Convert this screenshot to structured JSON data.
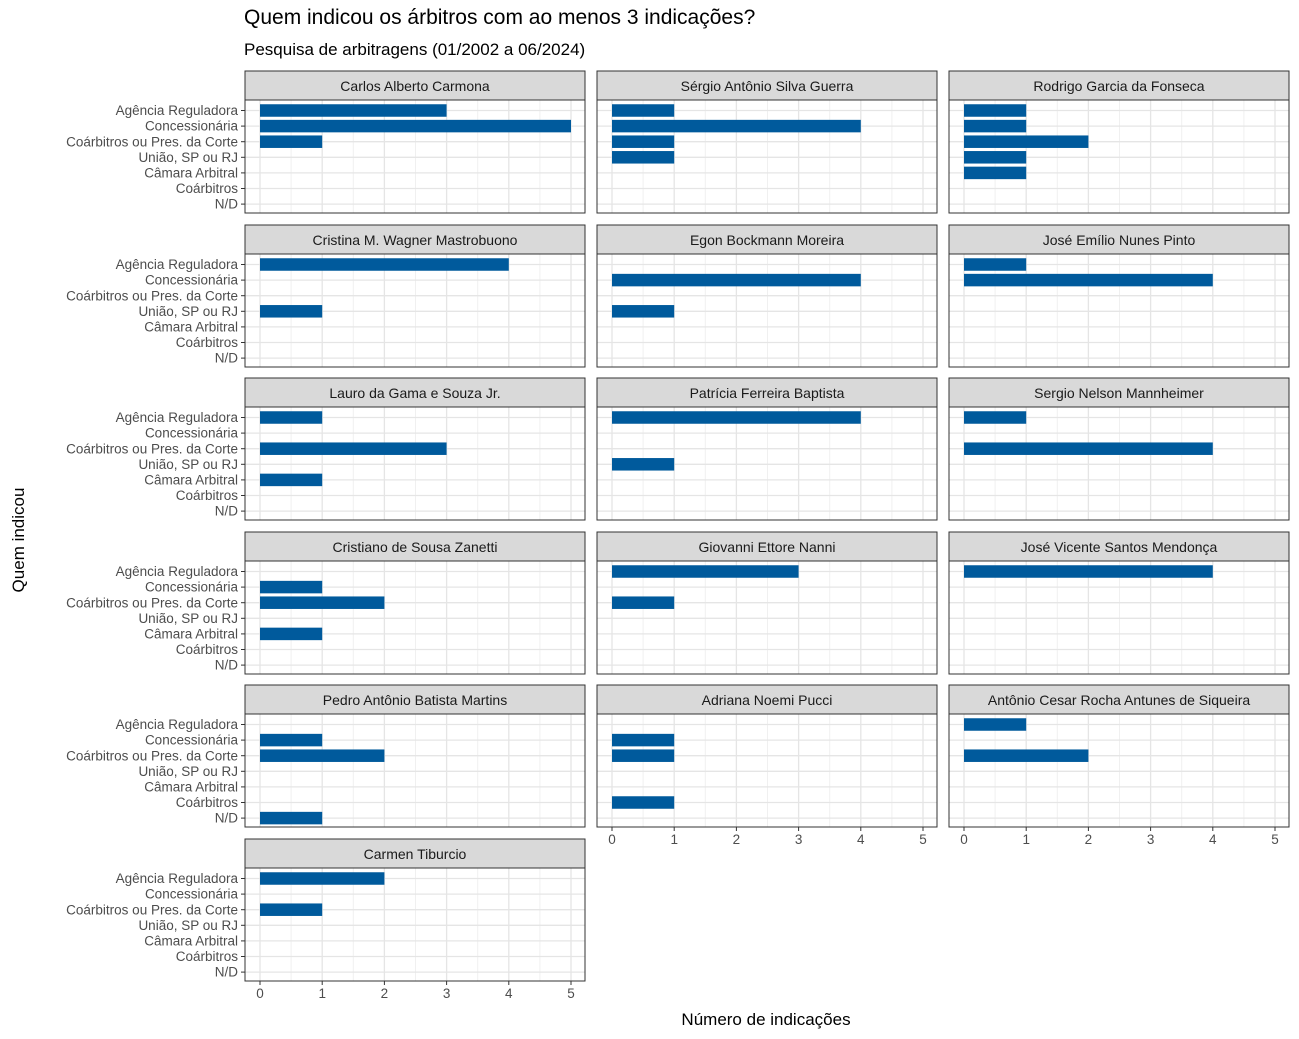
{
  "chart_data": {
    "type": "bar",
    "orientation": "horizontal",
    "title": "Quem indicou os árbitros com ao menos 3 indicações?",
    "subtitle": "Pesquisa de arbitragens (01/2002 a 06/2024)",
    "xlabel": "Número de indicações",
    "ylabel": "Quem indicou",
    "xlim": [
      0,
      5
    ],
    "x_ticks": [
      "0",
      "1",
      "2",
      "3",
      "4",
      "5"
    ],
    "categories": [
      "Agência Reguladora",
      "Concessionária",
      "Coárbitros ou Pres. da Corte",
      "União, SP ou RJ",
      "Câmara Arbitral",
      "Coárbitros",
      "N/D"
    ],
    "bar_color": "#005a9c",
    "strip_color": "#d9d9d9",
    "grid": true,
    "facets": [
      {
        "name": "Carlos Alberto Carmona",
        "values": [
          3,
          5,
          1,
          0,
          0,
          0,
          0
        ]
      },
      {
        "name": "Sérgio Antônio Silva Guerra",
        "values": [
          1,
          4,
          1,
          1,
          0,
          0,
          0
        ]
      },
      {
        "name": "Rodrigo Garcia da Fonseca",
        "values": [
          1,
          1,
          2,
          1,
          1,
          0,
          0
        ]
      },
      {
        "name": "Cristina M. Wagner Mastrobuono",
        "values": [
          4,
          0,
          0,
          1,
          0,
          0,
          0
        ]
      },
      {
        "name": "Egon Bockmann Moreira",
        "values": [
          0,
          4,
          0,
          1,
          0,
          0,
          0
        ]
      },
      {
        "name": "José Emílio Nunes Pinto",
        "values": [
          1,
          4,
          0,
          0,
          0,
          0,
          0
        ]
      },
      {
        "name": "Lauro da Gama e Souza Jr.",
        "values": [
          1,
          0,
          3,
          0,
          1,
          0,
          0
        ]
      },
      {
        "name": "Patrícia Ferreira Baptista",
        "values": [
          4,
          0,
          0,
          1,
          0,
          0,
          0
        ]
      },
      {
        "name": "Sergio Nelson Mannheimer",
        "values": [
          1,
          0,
          4,
          0,
          0,
          0,
          0
        ]
      },
      {
        "name": "Cristiano de Sousa Zanetti",
        "values": [
          0,
          1,
          2,
          0,
          1,
          0,
          0
        ]
      },
      {
        "name": "Giovanni Ettore Nanni",
        "values": [
          3,
          0,
          1,
          0,
          0,
          0,
          0
        ]
      },
      {
        "name": "José Vicente Santos Mendonça",
        "values": [
          4,
          0,
          0,
          0,
          0,
          0,
          0
        ]
      },
      {
        "name": "Pedro Antônio Batista Martins",
        "values": [
          0,
          1,
          2,
          0,
          0,
          0,
          1
        ]
      },
      {
        "name": "Adriana Noemi Pucci",
        "values": [
          0,
          1,
          1,
          0,
          0,
          1,
          0
        ]
      },
      {
        "name": "Antônio Cesar Rocha Antunes de Siqueira",
        "values": [
          1,
          0,
          2,
          0,
          0,
          0,
          0
        ]
      },
      {
        "name": "Carmen Tiburcio",
        "values": [
          2,
          0,
          1,
          0,
          0,
          0,
          0
        ]
      }
    ]
  }
}
